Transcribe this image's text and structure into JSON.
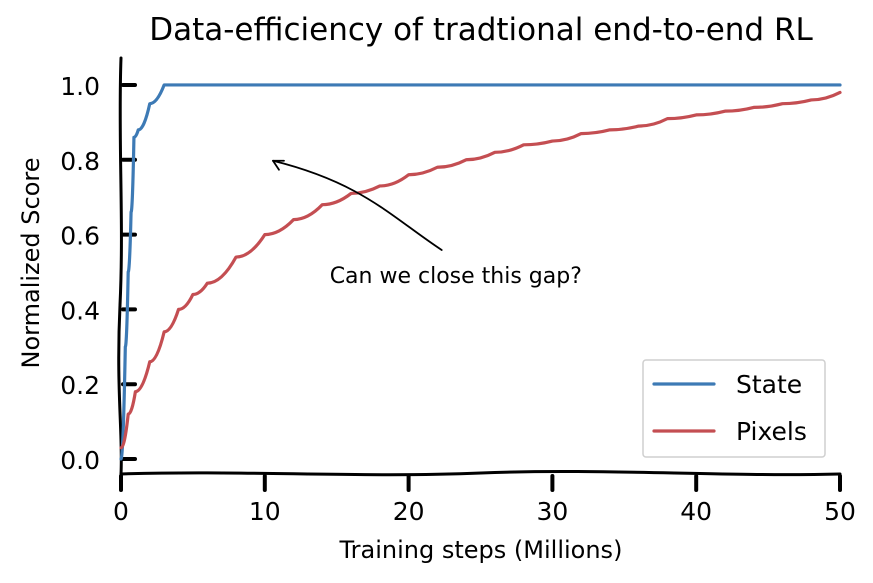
{
  "chart_data": {
    "type": "line",
    "title": "Data-efficiency of tradtional end-to-end RL",
    "xlabel": "Training steps (Millions)",
    "ylabel": "Normalized Score",
    "xlim": [
      0,
      50
    ],
    "ylim": [
      -0.04,
      1.04
    ],
    "xticks": [
      0,
      10,
      20,
      30,
      40,
      50
    ],
    "yticks": [
      0.0,
      0.2,
      0.4,
      0.6,
      0.8,
      1.0
    ],
    "xtick_labels": [
      "0",
      "10",
      "20",
      "30",
      "40",
      "50"
    ],
    "ytick_labels": [
      "0.0",
      "0.2",
      "0.4",
      "0.6",
      "0.8",
      "1.0"
    ],
    "grid": false,
    "legend_position": "bottom-right",
    "series": [
      {
        "name": "State",
        "color": "#3d7ab5",
        "x": [
          0,
          0.3,
          0.5,
          0.7,
          0.9,
          1.2,
          2,
          3,
          4,
          6,
          8,
          10,
          12,
          14,
          16,
          18,
          20,
          22,
          24,
          26,
          28,
          30,
          32,
          34,
          36,
          38,
          40,
          42,
          44,
          46,
          48,
          50
        ],
        "y": [
          0.0,
          0.3,
          0.5,
          0.66,
          0.86,
          0.88,
          0.95,
          1.0,
          1.0,
          1.0,
          1.0,
          1.0,
          1.0,
          1.0,
          1.0,
          1.0,
          1.0,
          1.0,
          1.0,
          1.0,
          1.0,
          1.0,
          1.0,
          1.0,
          1.0,
          1.0,
          1.0,
          1.0,
          1.0,
          1.0,
          1.0,
          1.0
        ]
      },
      {
        "name": "Pixels",
        "color": "#c44e52",
        "x": [
          0,
          0.5,
          1,
          2,
          3,
          4,
          5,
          6,
          8,
          10,
          12,
          14,
          16,
          18,
          20,
          22,
          24,
          26,
          28,
          30,
          32,
          34,
          36,
          38,
          40,
          42,
          44,
          46,
          48,
          50
        ],
        "y": [
          0.03,
          0.12,
          0.18,
          0.26,
          0.34,
          0.4,
          0.44,
          0.47,
          0.54,
          0.6,
          0.64,
          0.68,
          0.71,
          0.73,
          0.76,
          0.78,
          0.8,
          0.82,
          0.84,
          0.85,
          0.87,
          0.88,
          0.89,
          0.91,
          0.92,
          0.93,
          0.94,
          0.95,
          0.96,
          0.98
        ]
      }
    ],
    "annotations": [
      {
        "text": "Can we close this gap?",
        "x": 15,
        "y": 0.5,
        "arrow_to": [
          10.5,
          0.8
        ]
      }
    ]
  }
}
